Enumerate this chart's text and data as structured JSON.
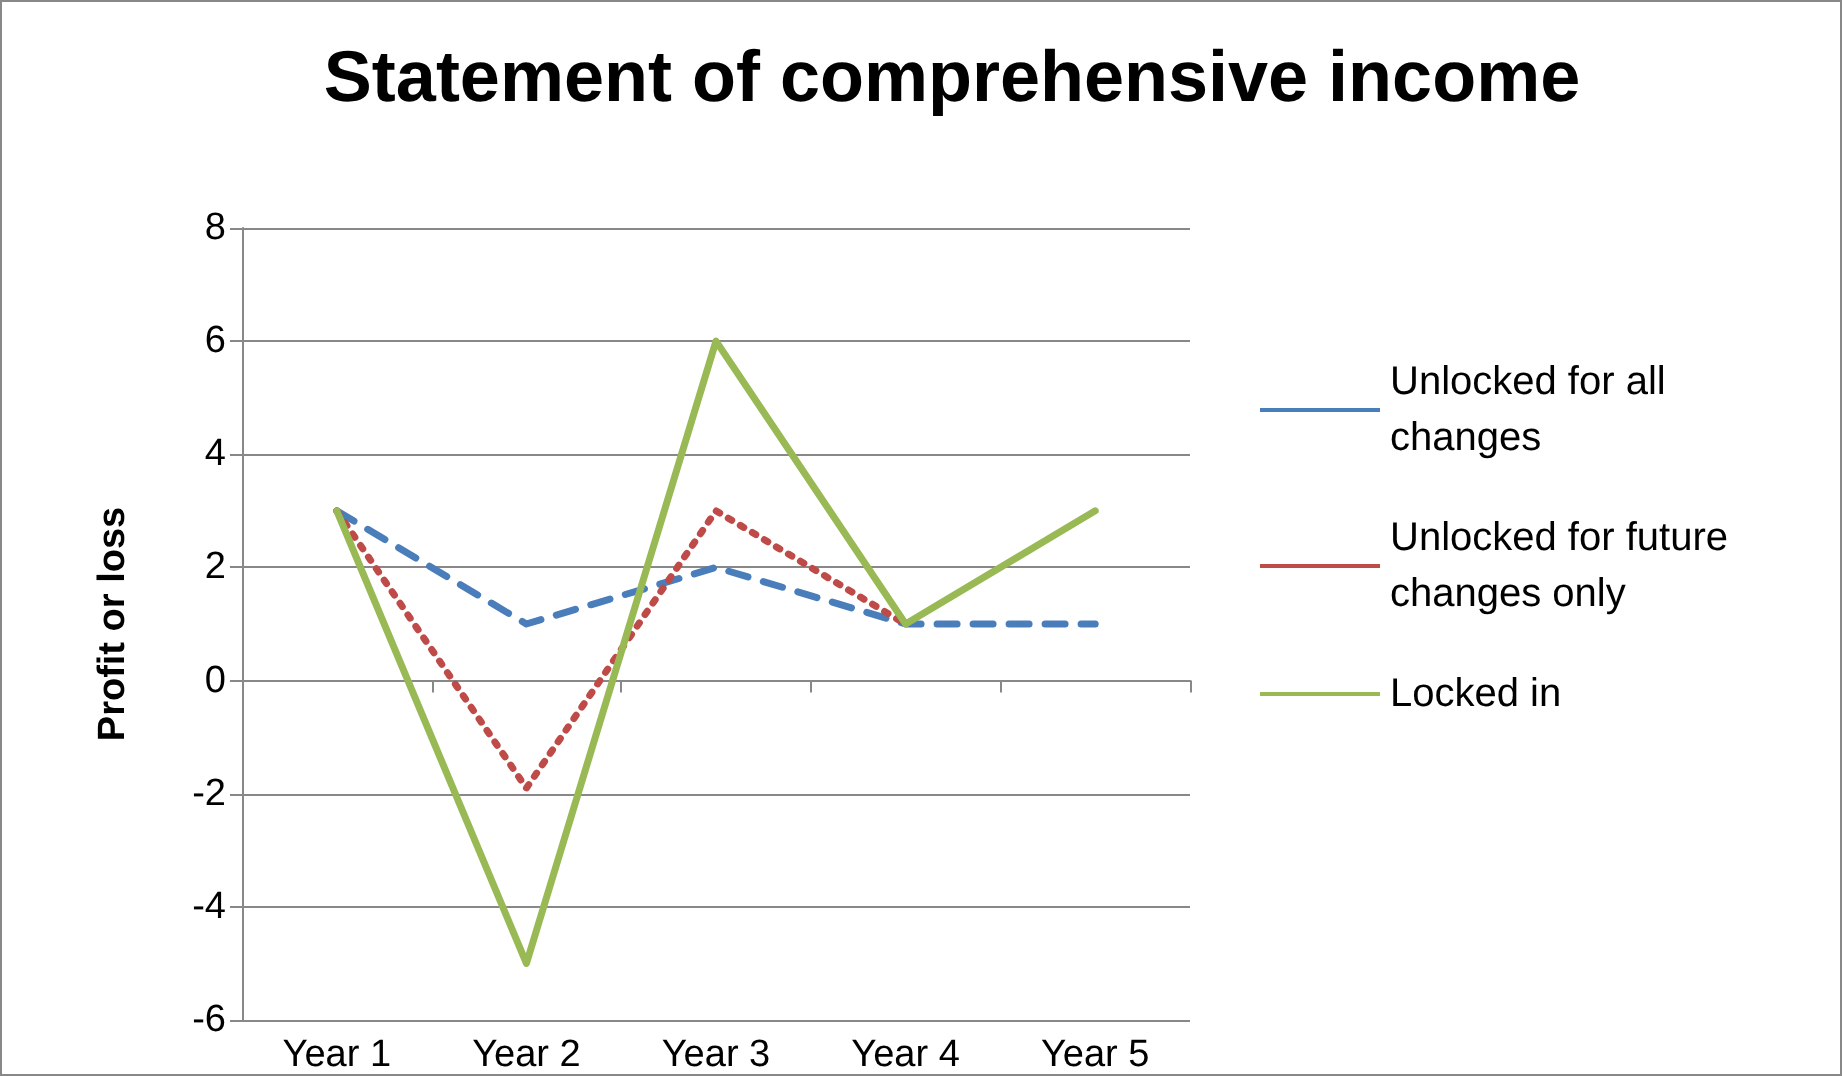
{
  "chart_data": {
    "type": "line",
    "title": "Statement of comprehensive income",
    "ylabel": "Profit or loss",
    "categories": [
      "Year 1",
      "Year 2",
      "Year 3",
      "Year 4",
      "Year 5"
    ],
    "series": [
      {
        "name": "Unlocked for all changes",
        "color": "#4a7ebb",
        "line_style": "dashed",
        "values": [
          3,
          1,
          2,
          1,
          1
        ]
      },
      {
        "name": "Unlocked for future changes only",
        "color": "#be4b48",
        "line_style": "dotted",
        "values": [
          3,
          -1.9,
          3,
          1,
          null
        ]
      },
      {
        "name": "Locked in",
        "color": "#98b954",
        "line_style": "solid",
        "values": [
          3,
          -5,
          6,
          1,
          3
        ]
      }
    ],
    "ylim": [
      -6,
      8
    ],
    "yticks": [
      -6,
      -4,
      -2,
      0,
      2,
      4,
      6,
      8
    ],
    "grid": "y",
    "legend": "right",
    "marker": "none"
  }
}
